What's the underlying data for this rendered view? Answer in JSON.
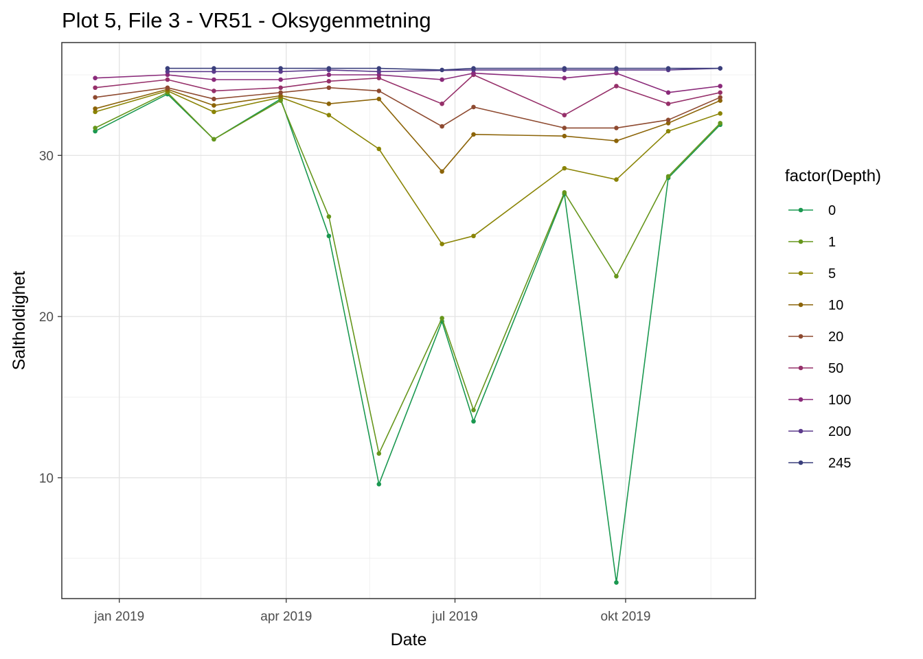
{
  "chart_data": {
    "type": "line",
    "title": "Plot 5, File 3 - VR51  -  Oksygenmetning",
    "xlabel": "Date",
    "ylabel": "Saltholdighet",
    "xlim": [
      "2018-12-01",
      "2019-12-10"
    ],
    "ylim": [
      2.5,
      37
    ],
    "x_ticks": [
      {
        "date": "2019-01-01",
        "label": "jan 2019"
      },
      {
        "date": "2019-04-01",
        "label": "apr 2019"
      },
      {
        "date": "2019-07-01",
        "label": "jul 2019"
      },
      {
        "date": "2019-10-01",
        "label": "okt 2019"
      }
    ],
    "x_minor_ticks": [
      "2019-02-14",
      "2019-05-16",
      "2019-08-16",
      "2019-11-16"
    ],
    "y_ticks": [
      10,
      20,
      30
    ],
    "y_minor_ticks": [
      5,
      15,
      25,
      35
    ],
    "grid": true,
    "legend": {
      "title": "factor(Depth)",
      "position": "right"
    },
    "series": [
      {
        "name": "0",
        "color": "#1a9850",
        "points": [
          [
            "2018-12-19",
            31.5
          ],
          [
            "2019-01-27",
            33.8
          ],
          [
            "2019-02-21",
            31.0
          ],
          [
            "2019-03-29",
            33.5
          ],
          [
            "2019-04-24",
            25.0
          ],
          [
            "2019-05-21",
            9.6
          ],
          [
            "2019-06-24",
            19.7
          ],
          [
            "2019-07-11",
            13.5
          ],
          [
            "2019-08-29",
            27.6
          ],
          [
            "2019-09-26",
            3.5
          ],
          [
            "2019-10-24",
            28.6
          ],
          [
            "2019-11-21",
            31.9
          ]
        ]
      },
      {
        "name": "1",
        "color": "#66961c",
        "points": [
          [
            "2018-12-19",
            31.7
          ],
          [
            "2019-01-27",
            33.9
          ],
          [
            "2019-02-21",
            31.0
          ],
          [
            "2019-03-29",
            33.4
          ],
          [
            "2019-04-24",
            26.2
          ],
          [
            "2019-05-21",
            11.5
          ],
          [
            "2019-06-24",
            19.9
          ],
          [
            "2019-07-11",
            14.2
          ],
          [
            "2019-08-29",
            27.7
          ],
          [
            "2019-09-26",
            22.5
          ],
          [
            "2019-10-24",
            28.7
          ],
          [
            "2019-11-21",
            32.0
          ]
        ]
      },
      {
        "name": "5",
        "color": "#8a8405",
        "points": [
          [
            "2018-12-19",
            32.7
          ],
          [
            "2019-01-27",
            34.0
          ],
          [
            "2019-02-21",
            32.7
          ],
          [
            "2019-03-29",
            33.6
          ],
          [
            "2019-04-24",
            32.5
          ],
          [
            "2019-05-21",
            30.4
          ],
          [
            "2019-06-24",
            24.5
          ],
          [
            "2019-07-11",
            25.0
          ],
          [
            "2019-08-29",
            29.2
          ],
          [
            "2019-09-26",
            28.5
          ],
          [
            "2019-10-24",
            31.5
          ],
          [
            "2019-11-21",
            32.6
          ]
        ]
      },
      {
        "name": "10",
        "color": "#8c6408",
        "points": [
          [
            "2018-12-19",
            32.9
          ],
          [
            "2019-01-27",
            34.1
          ],
          [
            "2019-02-21",
            33.1
          ],
          [
            "2019-03-29",
            33.7
          ],
          [
            "2019-04-24",
            33.2
          ],
          [
            "2019-05-21",
            33.5
          ],
          [
            "2019-06-24",
            29.0
          ],
          [
            "2019-07-11",
            31.3
          ],
          [
            "2019-08-29",
            31.2
          ],
          [
            "2019-09-26",
            30.9
          ],
          [
            "2019-10-24",
            32.0
          ],
          [
            "2019-11-21",
            33.4
          ]
        ]
      },
      {
        "name": "20",
        "color": "#8e4a30",
        "points": [
          [
            "2018-12-19",
            33.6
          ],
          [
            "2019-01-27",
            34.2
          ],
          [
            "2019-02-21",
            33.5
          ],
          [
            "2019-03-29",
            33.9
          ],
          [
            "2019-04-24",
            34.2
          ],
          [
            "2019-05-21",
            34.0
          ],
          [
            "2019-06-24",
            31.8
          ],
          [
            "2019-07-11",
            33.0
          ],
          [
            "2019-08-29",
            31.7
          ],
          [
            "2019-09-26",
            31.7
          ],
          [
            "2019-10-24",
            32.2
          ],
          [
            "2019-11-21",
            33.6
          ]
        ]
      },
      {
        "name": "50",
        "color": "#96306a",
        "points": [
          [
            "2018-12-19",
            34.2
          ],
          [
            "2019-01-27",
            34.7
          ],
          [
            "2019-02-21",
            34.0
          ],
          [
            "2019-03-29",
            34.2
          ],
          [
            "2019-04-24",
            34.6
          ],
          [
            "2019-05-21",
            34.8
          ],
          [
            "2019-06-24",
            33.2
          ],
          [
            "2019-07-11",
            35.0
          ],
          [
            "2019-08-29",
            32.5
          ],
          [
            "2019-09-26",
            34.3
          ],
          [
            "2019-10-24",
            33.2
          ],
          [
            "2019-11-21",
            33.9
          ]
        ]
      },
      {
        "name": "100",
        "color": "#8a2a7a",
        "points": [
          [
            "2018-12-19",
            34.8
          ],
          [
            "2019-01-27",
            35.0
          ],
          [
            "2019-02-21",
            34.7
          ],
          [
            "2019-03-29",
            34.7
          ],
          [
            "2019-04-24",
            35.0
          ],
          [
            "2019-05-21",
            35.0
          ],
          [
            "2019-06-24",
            34.7
          ],
          [
            "2019-07-11",
            35.1
          ],
          [
            "2019-08-29",
            34.8
          ],
          [
            "2019-09-26",
            35.1
          ],
          [
            "2019-10-24",
            33.9
          ],
          [
            "2019-11-21",
            34.3
          ]
        ]
      },
      {
        "name": "200",
        "color": "#5c3a8c",
        "points": [
          [
            "2019-01-27",
            35.2
          ],
          [
            "2019-02-21",
            35.2
          ],
          [
            "2019-03-29",
            35.2
          ],
          [
            "2019-04-24",
            35.3
          ],
          [
            "2019-05-21",
            35.2
          ],
          [
            "2019-07-11",
            35.3
          ],
          [
            "2019-08-29",
            35.3
          ],
          [
            "2019-09-26",
            35.3
          ],
          [
            "2019-10-24",
            35.3
          ],
          [
            "2019-11-21",
            35.4
          ]
        ]
      },
      {
        "name": "245",
        "color": "#3a3f7c",
        "points": [
          [
            "2019-01-27",
            35.4
          ],
          [
            "2019-02-21",
            35.4
          ],
          [
            "2019-03-29",
            35.4
          ],
          [
            "2019-04-24",
            35.4
          ],
          [
            "2019-05-21",
            35.4
          ],
          [
            "2019-06-24",
            35.3
          ],
          [
            "2019-07-11",
            35.4
          ],
          [
            "2019-08-29",
            35.4
          ],
          [
            "2019-09-26",
            35.4
          ],
          [
            "2019-10-24",
            35.4
          ],
          [
            "2019-11-21",
            35.4
          ]
        ]
      }
    ]
  }
}
